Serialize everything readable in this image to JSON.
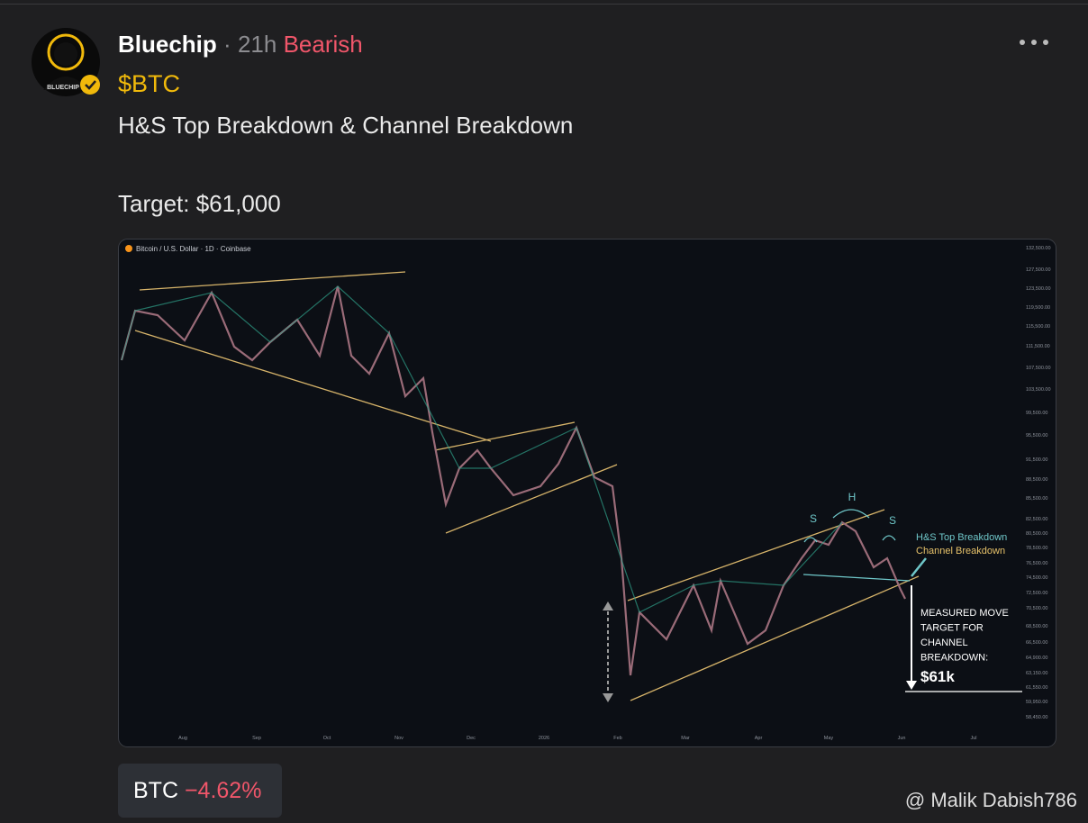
{
  "post": {
    "author": "Bluechip",
    "separator": "·",
    "age": "21h",
    "sentiment": "Bearish",
    "ticker": "$BTC",
    "avatar_label": "BLUECHIP",
    "text_lines": [
      "H&S Top Breakdown & Channel Breakdown",
      "Target: $61,000"
    ]
  },
  "chart_image": {
    "header": "Bitcoin / U.S. Dollar · 1D · Coinbase",
    "price_labels": [
      "132,500.00",
      "127,500.00",
      "123,500.00",
      "119,500.00",
      "115,500.00",
      "111,500.00",
      "107,500.00",
      "103,500.00",
      "99,500.00",
      "95,500.00",
      "91,500.00",
      "88,500.00",
      "85,500.00",
      "82,500.00",
      "80,500.00",
      "78,500.00",
      "76,500.00",
      "74,500.00",
      "72,500.00",
      "70,500.00",
      "68,500.00",
      "66,500.00",
      "64,900.00",
      "63,150.00",
      "61,550.00",
      "59,950.00",
      "58,450.00"
    ],
    "month_labels": [
      "Aug",
      "Sep",
      "Oct",
      "Nov",
      "Dec",
      "2026",
      "Feb",
      "Mar",
      "Apr",
      "May",
      "Jun",
      "Jul"
    ],
    "pattern_labels": [
      "S",
      "H",
      "S"
    ],
    "legend": {
      "hs": "H&S Top Breakdown",
      "channel": "Channel Breakdown"
    },
    "target_note": [
      "MEASURED MOVE",
      "TARGET FOR",
      "CHANNEL",
      "BREAKDOWN:"
    ],
    "target_value": "$61k"
  },
  "ticker_chip": {
    "symbol": "BTC",
    "change": "−4.62%"
  },
  "watermark": "@ Malik Dabish786"
}
